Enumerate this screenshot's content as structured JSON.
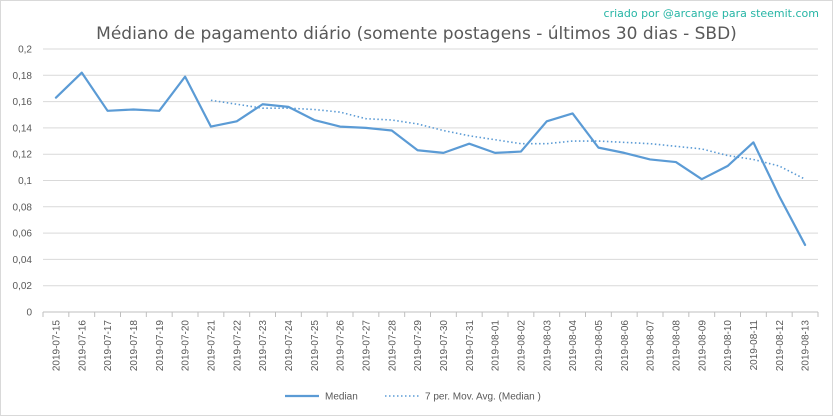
{
  "credit": "criado por @arcange para steemit.com",
  "chart_data": {
    "type": "line",
    "title": "Médiano de pagamento diário (somente postagens - últimos 30 dias - SBD)",
    "xlabel": "",
    "ylabel": "",
    "ylim": [
      0,
      0.2
    ],
    "yticks": [
      "0",
      "0,02",
      "0,04",
      "0,06",
      "0,08",
      "0,1",
      "0,12",
      "0,14",
      "0,16",
      "0,18",
      "0,2"
    ],
    "grid": true,
    "legend_position": "bottom",
    "categories": [
      "2019-07-15",
      "2019-07-16",
      "2019-07-17",
      "2019-07-18",
      "2019-07-19",
      "2019-07-20",
      "2019-07-21",
      "2019-07-22",
      "2019-07-23",
      "2019-07-24",
      "2019-07-25",
      "2019-07-26",
      "2019-07-27",
      "2019-07-28",
      "2019-07-29",
      "2019-07-30",
      "2019-07-31",
      "2019-08-01",
      "2019-08-02",
      "2019-08-03",
      "2019-08-04",
      "2019-08-05",
      "2019-08-06",
      "2019-08-07",
      "2019-08-08",
      "2019-08-09",
      "2019-08-10",
      "2019-08-11",
      "2019-08-12",
      "2019-08-13"
    ],
    "series": [
      {
        "name": "Median",
        "color": "#5b9bd5",
        "style": "solid",
        "values": [
          0.163,
          0.182,
          0.153,
          0.154,
          0.153,
          0.179,
          0.141,
          0.145,
          0.158,
          0.156,
          0.146,
          0.141,
          0.14,
          0.138,
          0.123,
          0.121,
          0.128,
          0.121,
          0.122,
          0.145,
          0.151,
          0.125,
          0.121,
          0.116,
          0.114,
          0.101,
          0.111,
          0.129,
          0.088,
          0.051
        ]
      },
      {
        "name": "7 per. Mov. Avg. (Median )",
        "color": "#5b9bd5",
        "style": "dotted",
        "values": [
          null,
          null,
          null,
          null,
          null,
          null,
          0.161,
          0.158,
          0.155,
          0.155,
          0.154,
          0.152,
          0.147,
          0.146,
          0.143,
          0.138,
          0.134,
          0.131,
          0.128,
          0.128,
          0.13,
          0.13,
          0.129,
          0.128,
          0.126,
          0.124,
          0.119,
          0.116,
          0.111,
          0.101
        ]
      }
    ]
  }
}
